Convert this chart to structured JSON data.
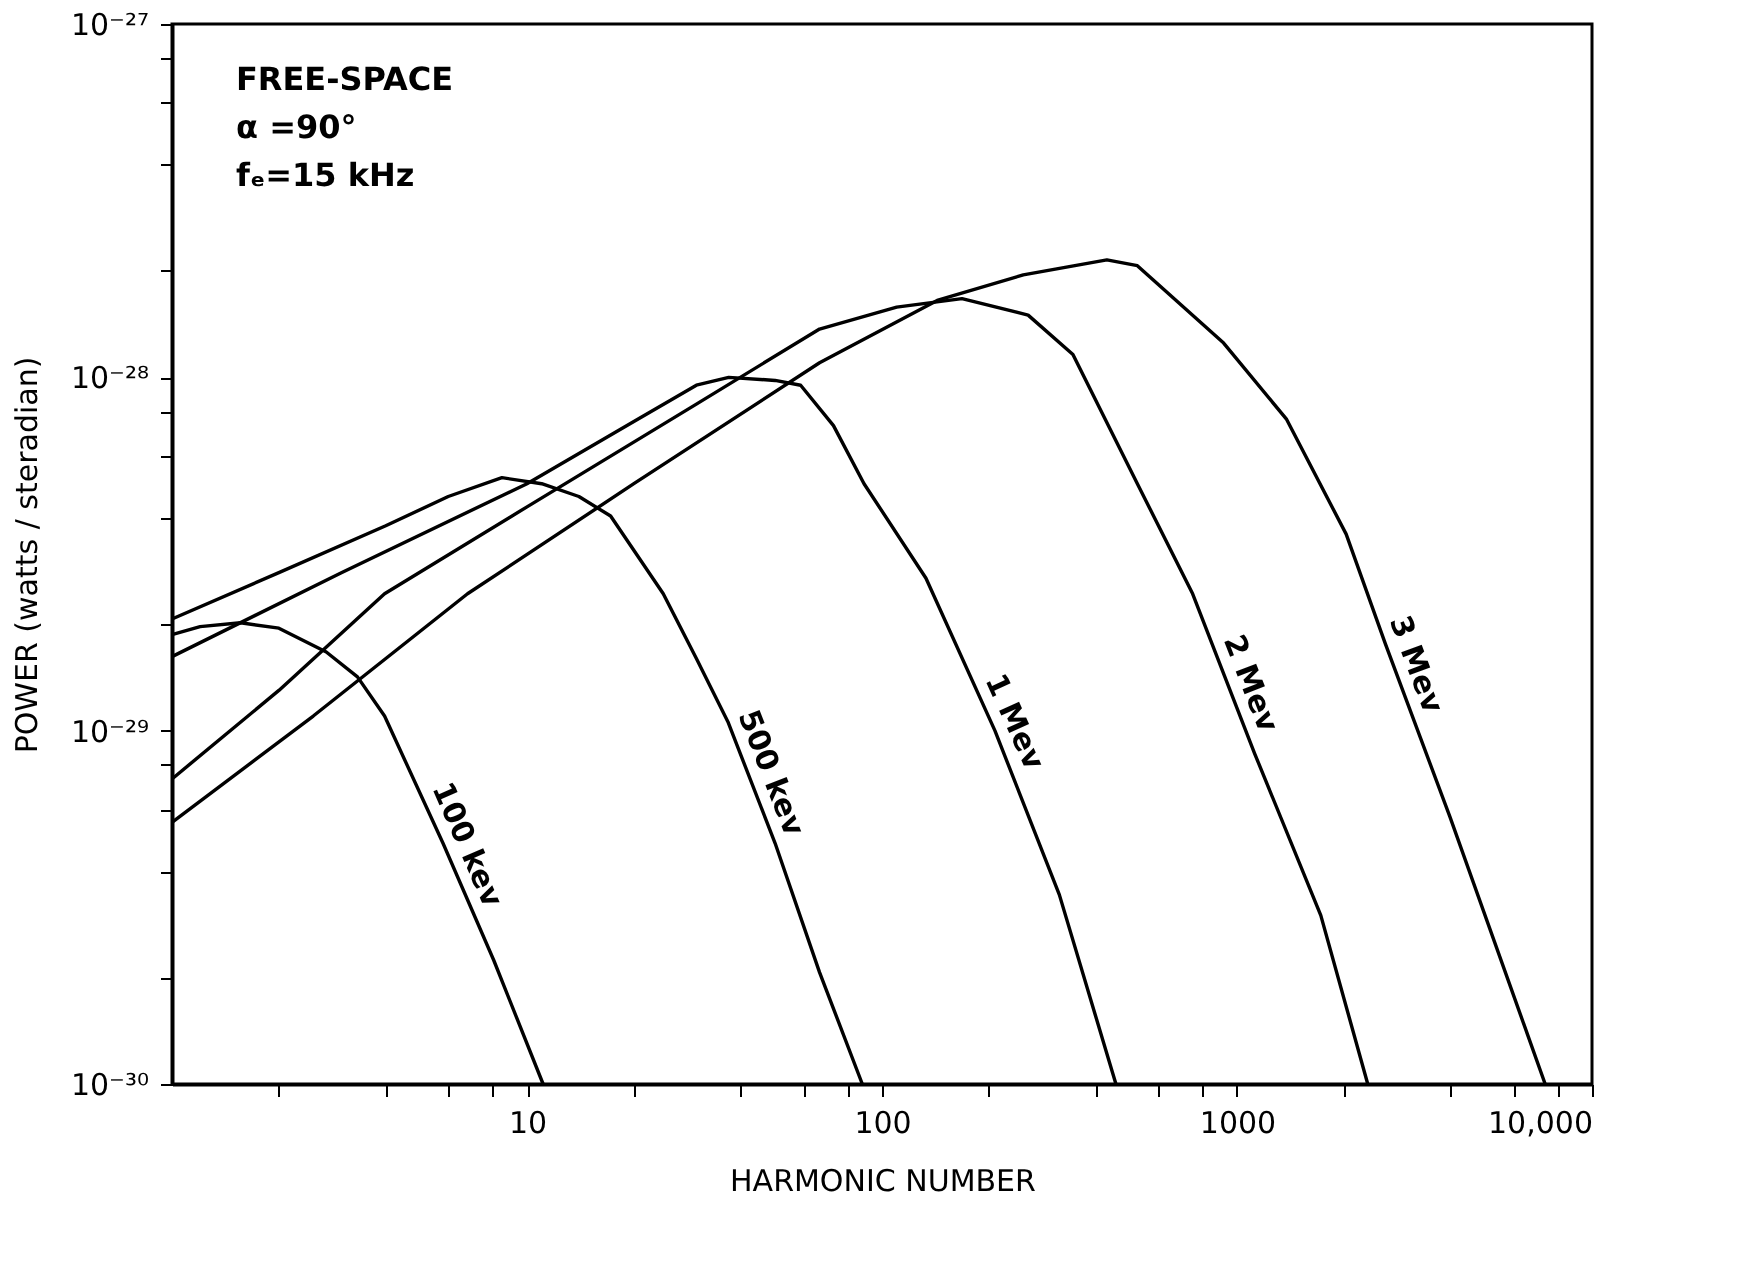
{
  "chart_data": {
    "type": "line",
    "xlabel": "HARMONIC NUMBER",
    "ylabel": "POWER  (watts / steradian)",
    "log": "xy",
    "grid": false,
    "marker": "none",
    "line_style": "solid",
    "xlim": [
      1,
      10000
    ],
    "ylim": [
      1e-30,
      1e-27
    ],
    "xticks": [
      {
        "value": 2,
        "label": null
      },
      {
        "value": 4,
        "label": null
      },
      {
        "value": 6,
        "label": null
      },
      {
        "value": 8,
        "label": null
      },
      {
        "value": 10,
        "label": "10"
      },
      {
        "value": 20,
        "label": null
      },
      {
        "value": 40,
        "label": null
      },
      {
        "value": 60,
        "label": null
      },
      {
        "value": 80,
        "label": null
      },
      {
        "value": 100,
        "label": "100"
      },
      {
        "value": 200,
        "label": null
      },
      {
        "value": 400,
        "label": null
      },
      {
        "value": 600,
        "label": null
      },
      {
        "value": 800,
        "label": null
      },
      {
        "value": 1000,
        "label": "1000"
      },
      {
        "value": 2000,
        "label": null
      },
      {
        "value": 4000,
        "label": null
      },
      {
        "value": 6000,
        "label": null
      },
      {
        "value": 8000,
        "label": null
      },
      {
        "value": 10000,
        "label": "10,000"
      }
    ],
    "yticks": [
      {
        "value": 1e-30,
        "label": "10⁻³⁰"
      },
      {
        "value": 2e-30,
        "label": null
      },
      {
        "value": 4e-30,
        "label": null
      },
      {
        "value": 6e-30,
        "label": null
      },
      {
        "value": 8e-30,
        "label": null
      },
      {
        "value": 1e-29,
        "label": "10⁻²⁹"
      },
      {
        "value": 2e-29,
        "label": null
      },
      {
        "value": 4e-29,
        "label": null
      },
      {
        "value": 6e-29,
        "label": null
      },
      {
        "value": 8e-29,
        "label": null
      },
      {
        "value": 1e-28,
        "label": "10⁻²⁸"
      },
      {
        "value": 2e-28,
        "label": null
      },
      {
        "value": 4e-28,
        "label": null
      },
      {
        "value": 6e-28,
        "label": null
      },
      {
        "value": 8e-28,
        "label": null
      },
      {
        "value": 1e-27,
        "label": "10⁻²⁷"
      }
    ],
    "annotations": [
      "FREE-SPACE",
      "α =90°",
      "fₑ=15 kHz"
    ],
    "series": [
      {
        "name": "100 kev",
        "color": "#000000",
        "x": [
          1,
          1.2,
          1.56,
          2,
          2.72,
          3.33,
          3.97,
          5.8,
          8.06,
          11.1
        ],
        "values": [
          1.87e-29,
          1.97e-29,
          2.02e-29,
          1.95e-29,
          1.67e-29,
          1.42e-29,
          1.1e-29,
          4.8e-30,
          2.24e-30,
          1e-30
        ]
      },
      {
        "name": "500 kev",
        "color": "#000000",
        "x": [
          1,
          2,
          4,
          6,
          8.5,
          11,
          14,
          17.2,
          24.2,
          30,
          36.8,
          50,
          66.7,
          88
        ],
        "values": [
          2.07e-29,
          2.8e-29,
          3.8e-29,
          4.6e-29,
          5.2e-29,
          5e-29,
          4.6e-29,
          4.05e-29,
          2.44e-29,
          1.6e-29,
          1.06e-29,
          4.8e-30,
          2.07e-30,
          1e-30
        ]
      },
      {
        "name": "1 Mev",
        "color": "#000000",
        "x": [
          1,
          3,
          10,
          20,
          30,
          37,
          50,
          59,
          73,
          89,
          133,
          208,
          316,
          456
        ],
        "values": [
          1.62e-29,
          2.8e-29,
          5e-29,
          7.5e-29,
          9.5e-29,
          1e-28,
          9.8e-29,
          9.5e-29,
          7.3e-29,
          5e-29,
          2.7e-29,
          1e-29,
          3.43e-30,
          1e-30
        ]
      },
      {
        "name": "2 Mev",
        "color": "#000000",
        "x": [
          1,
          2,
          3.97,
          10,
          30,
          66.7,
          110,
          168,
          258,
          345,
          524,
          750,
          1122,
          1722,
          2335
        ],
        "values": [
          7.3e-30,
          1.3e-29,
          2.44e-29,
          4.3e-29,
          8.4e-29,
          1.37e-28,
          1.58e-28,
          1.67e-28,
          1.5e-28,
          1.16e-28,
          5e-29,
          2.44e-29,
          8.6e-30,
          3e-30,
          1e-30
        ]
      },
      {
        "name": "3 Mev",
        "color": "#000000",
        "x": [
          1,
          2.5,
          6.8,
          20,
          66.7,
          143,
          250,
          430,
          524,
          917,
          1380,
          2030,
          2618,
          3980,
          7380
        ],
        "values": [
          5.5e-30,
          1.1e-29,
          2.44e-29,
          5e-29,
          1.1e-28,
          1.65e-28,
          1.95e-28,
          2.15e-28,
          2.07e-28,
          1.25e-28,
          7.6e-29,
          3.6e-29,
          1.76e-29,
          5.7e-30,
          1e-30
        ]
      }
    ]
  }
}
